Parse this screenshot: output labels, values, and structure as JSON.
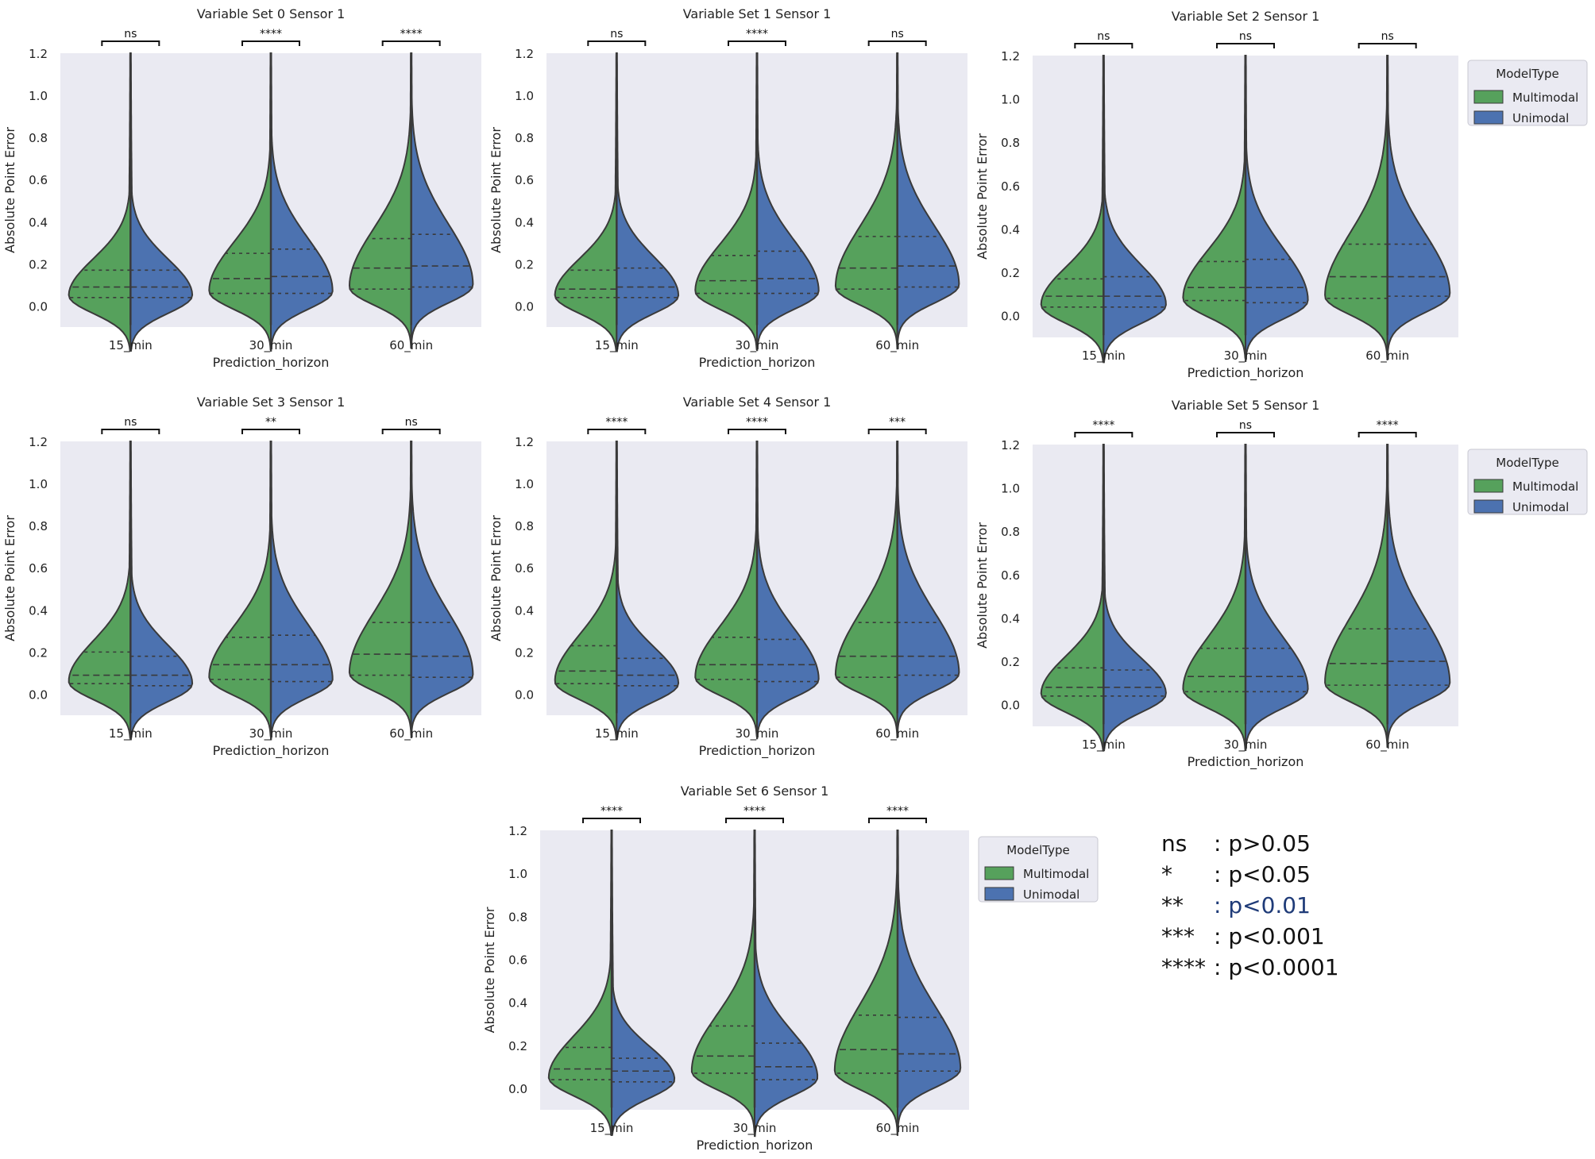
{
  "colors": {
    "multimodal": "#56a15c",
    "unimodal": "#4c72b0",
    "plot_bg": "#eaeaf2",
    "outline": "#3a3a3a"
  },
  "chart_data": [
    {
      "type": "violin",
      "title": "Variable Set 0 Sensor 1",
      "xlabel": "Prediction_horizon",
      "ylabel": "Absolute Point Error",
      "categories": [
        "15_min",
        "30_min",
        "60_min"
      ],
      "yticks": [
        "0.0",
        "0.2",
        "0.4",
        "0.6",
        "0.8",
        "1.0",
        "1.2"
      ],
      "ylim": [
        -0.1,
        1.2
      ],
      "significance": [
        "ns",
        "****",
        "****"
      ],
      "legend": null,
      "series": [
        {
          "name": "Multimodal",
          "quartiles": [
            [
              0.04,
              0.09,
              0.17
            ],
            [
              0.06,
              0.13,
              0.25
            ],
            [
              0.08,
              0.18,
              0.32
            ]
          ]
        },
        {
          "name": "Unimodal",
          "quartiles": [
            [
              0.04,
              0.09,
              0.17
            ],
            [
              0.06,
              0.14,
              0.27
            ],
            [
              0.09,
              0.19,
              0.34
            ]
          ]
        }
      ]
    },
    {
      "type": "violin",
      "title": "Variable Set 1 Sensor 1",
      "xlabel": "Prediction_horizon",
      "ylabel": "Absolute Point Error",
      "categories": [
        "15_min",
        "30_min",
        "60_min"
      ],
      "yticks": [
        "0.0",
        "0.2",
        "0.4",
        "0.6",
        "0.8",
        "1.0",
        "1.2"
      ],
      "ylim": [
        -0.1,
        1.2
      ],
      "significance": [
        "ns",
        "****",
        "ns"
      ],
      "legend": null,
      "series": [
        {
          "name": "Multimodal",
          "quartiles": [
            [
              0.04,
              0.08,
              0.17
            ],
            [
              0.06,
              0.12,
              0.24
            ],
            [
              0.08,
              0.18,
              0.33
            ]
          ]
        },
        {
          "name": "Unimodal",
          "quartiles": [
            [
              0.04,
              0.09,
              0.18
            ],
            [
              0.06,
              0.13,
              0.26
            ],
            [
              0.09,
              0.19,
              0.33
            ]
          ]
        }
      ]
    },
    {
      "type": "violin",
      "title": "Variable Set 2 Sensor 1",
      "xlabel": "Prediction_horizon",
      "ylabel": "Absolute Point Error",
      "categories": [
        "15_min",
        "30_min",
        "60_min"
      ],
      "yticks": [
        "0.0",
        "0.2",
        "0.4",
        "0.6",
        "0.8",
        "1.0",
        "1.2"
      ],
      "ylim": [
        -0.1,
        1.2
      ],
      "significance": [
        "ns",
        "ns",
        "ns"
      ],
      "legend": {
        "title": "ModelType",
        "entries": [
          "Multimodal",
          "Unimodal"
        ]
      },
      "series": [
        {
          "name": "Multimodal",
          "quartiles": [
            [
              0.04,
              0.09,
              0.17
            ],
            [
              0.07,
              0.13,
              0.25
            ],
            [
              0.08,
              0.18,
              0.33
            ]
          ]
        },
        {
          "name": "Unimodal",
          "quartiles": [
            [
              0.04,
              0.09,
              0.18
            ],
            [
              0.06,
              0.13,
              0.26
            ],
            [
              0.09,
              0.18,
              0.33
            ]
          ]
        }
      ]
    },
    {
      "type": "violin",
      "title": "Variable Set 3 Sensor 1",
      "xlabel": "Prediction_horizon",
      "ylabel": "Absolute Point Error",
      "categories": [
        "15_min",
        "30_min",
        "60_min"
      ],
      "yticks": [
        "0.0",
        "0.2",
        "0.4",
        "0.6",
        "0.8",
        "1.0",
        "1.2"
      ],
      "ylim": [
        -0.1,
        1.2
      ],
      "significance": [
        "ns",
        "**",
        "ns"
      ],
      "legend": null,
      "series": [
        {
          "name": "Multimodal",
          "quartiles": [
            [
              0.05,
              0.09,
              0.2
            ],
            [
              0.07,
              0.14,
              0.27
            ],
            [
              0.09,
              0.19,
              0.34
            ]
          ]
        },
        {
          "name": "Unimodal",
          "quartiles": [
            [
              0.04,
              0.09,
              0.18
            ],
            [
              0.06,
              0.14,
              0.28
            ],
            [
              0.08,
              0.18,
              0.34
            ]
          ]
        }
      ]
    },
    {
      "type": "violin",
      "title": "Variable Set 4 Sensor 1",
      "xlabel": "Prediction_horizon",
      "ylabel": "Absolute Point Error",
      "categories": [
        "15_min",
        "30_min",
        "60_min"
      ],
      "yticks": [
        "0.0",
        "0.2",
        "0.4",
        "0.6",
        "0.8",
        "1.0",
        "1.2"
      ],
      "ylim": [
        -0.1,
        1.2
      ],
      "significance": [
        "****",
        "****",
        "***"
      ],
      "legend": null,
      "series": [
        {
          "name": "Multimodal",
          "quartiles": [
            [
              0.05,
              0.11,
              0.23
            ],
            [
              0.07,
              0.14,
              0.27
            ],
            [
              0.08,
              0.18,
              0.34
            ]
          ]
        },
        {
          "name": "Unimodal",
          "quartiles": [
            [
              0.04,
              0.09,
              0.17
            ],
            [
              0.06,
              0.14,
              0.26
            ],
            [
              0.09,
              0.18,
              0.34
            ]
          ]
        }
      ]
    },
    {
      "type": "violin",
      "title": "Variable Set 5 Sensor 1",
      "xlabel": "Prediction_horizon",
      "ylabel": "Absolute Point Error",
      "categories": [
        "15_min",
        "30_min",
        "60_min"
      ],
      "yticks": [
        "0.0",
        "0.2",
        "0.4",
        "0.6",
        "0.8",
        "1.0",
        "1.2"
      ],
      "ylim": [
        -0.1,
        1.2
      ],
      "significance": [
        "****",
        "ns",
        "****"
      ],
      "legend": {
        "title": "ModelType",
        "entries": [
          "Multimodal",
          "Unimodal"
        ]
      },
      "series": [
        {
          "name": "Multimodal",
          "quartiles": [
            [
              0.04,
              0.08,
              0.17
            ],
            [
              0.06,
              0.13,
              0.26
            ],
            [
              0.09,
              0.19,
              0.35
            ]
          ]
        },
        {
          "name": "Unimodal",
          "quartiles": [
            [
              0.04,
              0.08,
              0.16
            ],
            [
              0.06,
              0.13,
              0.26
            ],
            [
              0.09,
              0.2,
              0.35
            ]
          ]
        }
      ]
    },
    {
      "type": "violin",
      "title": "Variable Set 6 Sensor 1",
      "xlabel": "Prediction_horizon",
      "ylabel": "Absolute Point Error",
      "categories": [
        "15_min",
        "30_min",
        "60_min"
      ],
      "yticks": [
        "0.0",
        "0.2",
        "0.4",
        "0.6",
        "0.8",
        "1.0",
        "1.2"
      ],
      "ylim": [
        -0.1,
        1.2
      ],
      "significance": [
        "****",
        "****",
        "****"
      ],
      "legend": {
        "title": "ModelType",
        "entries": [
          "Multimodal",
          "Unimodal"
        ]
      },
      "series": [
        {
          "name": "Multimodal",
          "quartiles": [
            [
              0.04,
              0.09,
              0.19
            ],
            [
              0.07,
              0.15,
              0.29
            ],
            [
              0.07,
              0.18,
              0.34
            ]
          ]
        },
        {
          "name": "Unimodal",
          "quartiles": [
            [
              0.03,
              0.08,
              0.14
            ],
            [
              0.04,
              0.1,
              0.21
            ],
            [
              0.08,
              0.16,
              0.33
            ]
          ]
        }
      ]
    }
  ],
  "significance_key": [
    {
      "symbol": "ns",
      "meaning": ": p>0.05"
    },
    {
      "symbol": "*",
      "meaning": ": p<0.05"
    },
    {
      "symbol": "**",
      "meaning": ": p<0.01"
    },
    {
      "symbol": "***",
      "meaning": ": p<0.001"
    },
    {
      "symbol": "****",
      "meaning": ": p<0.0001"
    }
  ]
}
